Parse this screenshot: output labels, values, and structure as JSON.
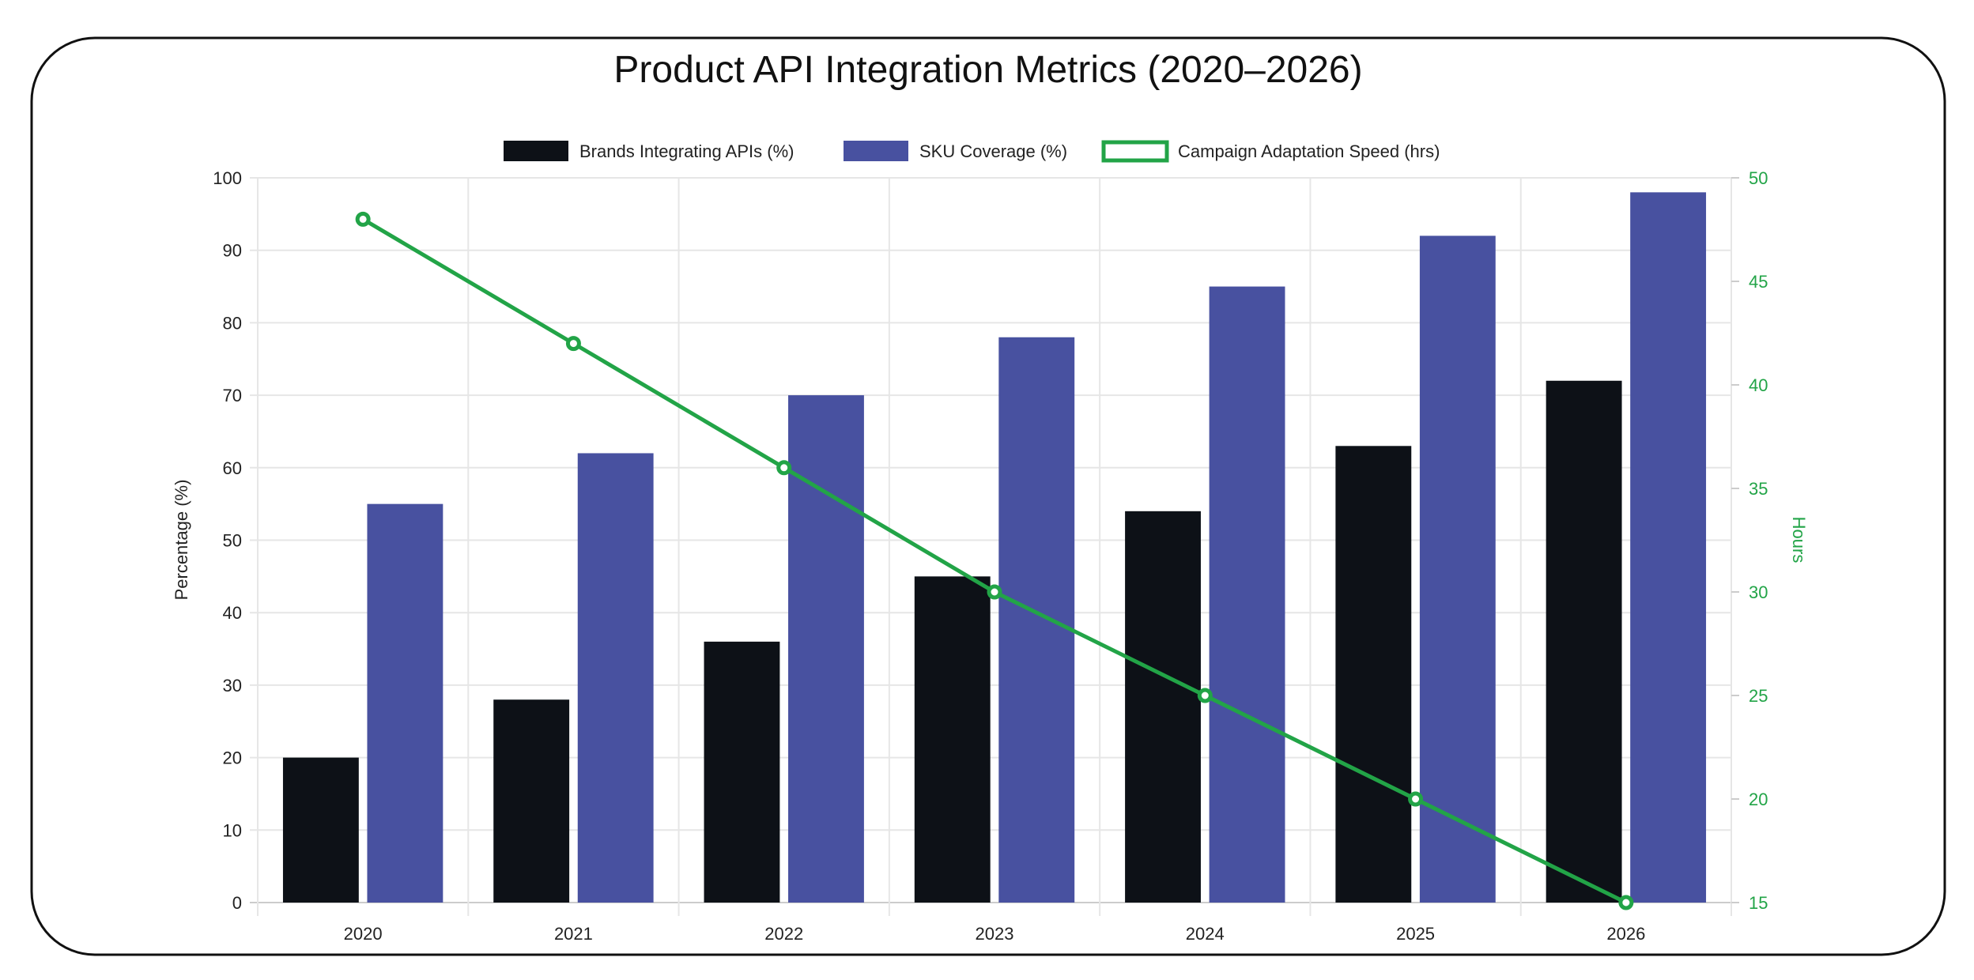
{
  "chart_data": {
    "type": "bar",
    "title": "Product API Integration Metrics (2020–2026)",
    "categories": [
      "2020",
      "2021",
      "2022",
      "2023",
      "2024",
      "2025",
      "2026"
    ],
    "series": [
      {
        "name": "Brands Integrating APIs (%)",
        "type": "bar",
        "axis": "left",
        "color": "#0d1117",
        "values": [
          20,
          28,
          36,
          45,
          54,
          63,
          72
        ]
      },
      {
        "name": "SKU Coverage (%)",
        "type": "bar",
        "axis": "left",
        "color": "#4851a0",
        "values": [
          55,
          62,
          70,
          78,
          85,
          92,
          98
        ]
      },
      {
        "name": "Campaign Adaptation Speed (hrs)",
        "type": "line",
        "axis": "right",
        "color": "#22a447",
        "values": [
          48,
          42,
          36,
          30,
          25,
          20,
          15
        ]
      }
    ],
    "ylabel": "Percentage (%)",
    "ylim": [
      0,
      100
    ],
    "yticks": [
      "0",
      "10",
      "20",
      "30",
      "40",
      "50",
      "60",
      "70",
      "80",
      "90",
      "100"
    ],
    "y2label": "Hours",
    "y2lim": [
      15,
      50
    ],
    "y2ticks": [
      "15",
      "20",
      "25",
      "30",
      "35",
      "40",
      "45",
      "50"
    ],
    "grid": true,
    "legend": "top"
  }
}
